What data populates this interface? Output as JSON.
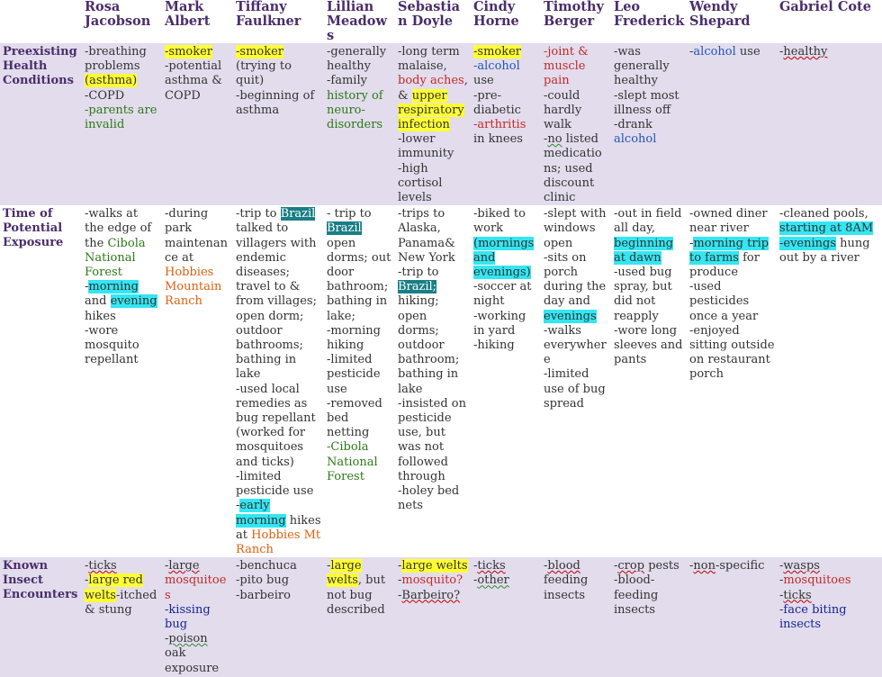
{
  "names": [
    "Rosa Jacobson",
    "Mark Albert",
    "Tiffany Faulkner",
    "Lillian Meadows",
    "Sebastian Doyle",
    "Cindy Horne",
    "Timothy Berger",
    "Leo Frederick",
    "Wendy Shepard",
    "Gabriel Cote"
  ],
  "rows": [
    {
      "label": "Preexisting Health Conditions",
      "cells": [
        [
          [
            [
              "-breathing problems ",
              ""
            ],
            [
              "(asthma)",
              "hy"
            ]
          ],
          [
            [
              "-COPD",
              ""
            ]
          ],
          [
            [
              "-parents are invalid",
              "grn"
            ]
          ]
        ],
        [
          [
            [
              "-smoker",
              "hy"
            ]
          ],
          [
            [
              "-potential asthma & COPD",
              ""
            ]
          ]
        ],
        [
          [
            [
              "-smoker",
              "hy"
            ]
          ],
          [
            [
              "(trying to quit)",
              ""
            ]
          ],
          [
            [
              "-beginning of asthma",
              ""
            ]
          ]
        ],
        [
          [
            [
              "-generally healthy",
              ""
            ]
          ],
          [
            [
              "-family ",
              ""
            ],
            [
              "history of neuro-disorders",
              "grn"
            ]
          ]
        ],
        [
          [
            [
              "-long term malaise, ",
              ""
            ],
            [
              "body aches",
              "red"
            ],
            [
              ", & ",
              ""
            ],
            [
              "upper respiratory infection",
              "hy"
            ]
          ],
          [
            [
              "-lower immunity",
              ""
            ]
          ],
          [
            [
              "-high cortisol levels",
              ""
            ]
          ]
        ],
        [
          [
            [
              "-smoker",
              "hy"
            ]
          ],
          [
            [
              "-alcohol",
              "blu"
            ],
            [
              " use",
              ""
            ]
          ],
          [
            [
              "-pre-diabetic",
              ""
            ]
          ],
          [
            [
              "-arthritis",
              "red"
            ],
            [
              " in knees",
              ""
            ]
          ]
        ],
        [
          [
            [
              "-joint & muscle pain",
              "red"
            ]
          ],
          [
            [
              "-could hardly walk",
              ""
            ]
          ],
          [
            [
              "-",
              ""
            ],
            [
              "no",
              "sqg"
            ],
            [
              " listed medications; used discount clinic",
              ""
            ]
          ]
        ],
        [
          [
            [
              "-was generally healthy",
              ""
            ]
          ],
          [
            [
              "-slept most illness off",
              ""
            ]
          ],
          [
            [
              "-drank ",
              ""
            ],
            [
              "alcohol",
              "blu"
            ]
          ]
        ],
        [
          [
            [
              "-",
              ""
            ],
            [
              "alcohol",
              "blu"
            ],
            [
              " use",
              ""
            ]
          ]
        ],
        [
          [
            [
              "-",
              ""
            ],
            [
              "healthy",
              "sq"
            ]
          ]
        ]
      ]
    },
    {
      "label": "Time of Potential Exposure",
      "cells": [
        [
          [
            [
              "-walks at the edge of the ",
              ""
            ],
            [
              "Cibola National Forest",
              "grn"
            ]
          ],
          [
            [
              "-",
              ""
            ],
            [
              "morning",
              "hc"
            ],
            [
              " and ",
              ""
            ],
            [
              "evening",
              "hc"
            ],
            [
              " hikes",
              ""
            ]
          ],
          [
            [
              "-wore mosquito repellant",
              ""
            ]
          ]
        ],
        [
          [
            [
              "-during park maintenance at ",
              ""
            ],
            [
              "Hobbies Mountain Ranch",
              "org"
            ]
          ]
        ],
        [
          [
            [
              "-trip to ",
              ""
            ],
            [
              "Brazil",
              "ht"
            ],
            [
              " talked to villagers with endemic diseases; travel to & from villages; open dorm; outdoor bathrooms; bathing in lake",
              ""
            ]
          ],
          [
            [
              "-used local remedies as bug repellant (worked for mosquitoes and ticks)",
              ""
            ]
          ],
          [
            [
              "-limited pesticide use",
              ""
            ]
          ],
          [
            [
              "-",
              ""
            ],
            [
              "early morning",
              "hc"
            ],
            [
              " hikes at ",
              ""
            ],
            [
              "Hobbies Mt Ranch",
              "org"
            ]
          ]
        ],
        [
          [
            [
              "- trip to ",
              ""
            ],
            [
              "Brazil",
              "ht"
            ],
            [
              " open dorms; out door bathroom; bathing in lake;",
              ""
            ]
          ],
          [
            [
              "-morning hiking",
              ""
            ]
          ],
          [
            [
              "-limited pesticide use",
              ""
            ]
          ],
          [
            [
              "-removed bed netting",
              ""
            ]
          ],
          [
            [
              "-Cibola National Forest",
              "grn"
            ]
          ]
        ],
        [
          [
            [
              "-trips to Alaska, Panama& New York",
              ""
            ]
          ],
          [
            [
              "-trip to ",
              ""
            ],
            [
              "Brazil;",
              "ht"
            ],
            [
              " hiking; open dorms; outdoor bathroom; bathing in lake",
              ""
            ]
          ],
          [
            [
              "-insisted on pesticide use, but was not followed through",
              ""
            ]
          ],
          [
            [
              "-holey bed nets",
              ""
            ]
          ]
        ],
        [
          [
            [
              "-biked to work ",
              ""
            ],
            [
              "(mornings and evenings)",
              "hc"
            ]
          ],
          [
            [
              "-soccer at night",
              ""
            ]
          ],
          [
            [
              "-working in yard",
              ""
            ]
          ],
          [
            [
              "-hiking",
              ""
            ]
          ]
        ],
        [
          [
            [
              "-slept with windows open",
              ""
            ]
          ],
          [
            [
              "-sits on porch during the day and ",
              ""
            ],
            [
              "evenings",
              "hc"
            ]
          ],
          [
            [
              "-walks everywhere",
              ""
            ]
          ],
          [
            [
              "-limited use of bug spread",
              ""
            ]
          ]
        ],
        [
          [
            [
              "-out in field all day, ",
              ""
            ],
            [
              "beginning at dawn",
              "hc"
            ]
          ],
          [
            [
              "-used bug spray, but did not reapply",
              ""
            ]
          ],
          [
            [
              "-wore long sleeves and pants",
              ""
            ]
          ]
        ],
        [
          [
            [
              "-owned diner near river",
              ""
            ]
          ],
          [
            [
              "-",
              ""
            ],
            [
              "morning trip to farms",
              "hc"
            ],
            [
              " for produce",
              ""
            ]
          ],
          [
            [
              "-used pesticides once a year",
              ""
            ]
          ],
          [
            [
              "-enjoyed sitting outside on restaurant porch",
              ""
            ]
          ]
        ],
        [
          [
            [
              "-cleaned pools, ",
              ""
            ],
            [
              "starting at 8AM",
              "hc"
            ]
          ],
          [
            [
              "-evenings",
              "hc"
            ],
            [
              " hung out by a river",
              ""
            ]
          ]
        ]
      ]
    },
    {
      "label": "Known Insect Encounters",
      "cells": [
        [
          [
            [
              "-",
              ""
            ],
            [
              "ticks",
              "sq"
            ]
          ],
          [
            [
              "-",
              ""
            ],
            [
              "large red welts",
              "hy"
            ],
            [
              "-itched & stung",
              ""
            ]
          ]
        ],
        [
          [
            [
              "-",
              ""
            ],
            [
              "large",
              "sq"
            ]
          ],
          [
            [
              "mosquitoes",
              "red"
            ]
          ],
          [
            [
              "-",
              ""
            ],
            [
              "kissing bug",
              "nvy"
            ]
          ],
          [
            [
              "-",
              ""
            ],
            [
              "poison",
              "sqg"
            ],
            [
              " oak exposure",
              ""
            ]
          ]
        ],
        [
          [
            [
              "-benchuca",
              ""
            ]
          ],
          [
            [
              "-pito bug",
              ""
            ]
          ],
          [
            [
              "-barbeiro",
              ""
            ]
          ]
        ],
        [
          [
            [
              "-",
              ""
            ],
            [
              "large welts",
              "hy"
            ],
            [
              ", but not bug described",
              ""
            ]
          ]
        ],
        [
          [
            [
              "-",
              ""
            ],
            [
              "large welts",
              "hy"
            ]
          ],
          [
            [
              "-",
              ""
            ],
            [
              "mosquito?",
              "red"
            ]
          ],
          [
            [
              "-",
              ""
            ],
            [
              "Barbeiro?",
              "sq"
            ]
          ]
        ],
        [
          [
            [
              "-",
              ""
            ],
            [
              "ticks",
              "sq"
            ]
          ],
          [
            [
              "-",
              ""
            ],
            [
              "other",
              "sqg"
            ]
          ]
        ],
        [
          [
            [
              "-",
              ""
            ],
            [
              "blood",
              "sq"
            ],
            [
              " feeding insects",
              ""
            ]
          ]
        ],
        [
          [
            [
              "-",
              ""
            ],
            [
              "crop",
              "sq"
            ],
            [
              " pests",
              ""
            ]
          ],
          [
            [
              "-blood-feeding insects",
              ""
            ]
          ]
        ],
        [
          [
            [
              "-",
              ""
            ],
            [
              "non",
              "sq"
            ],
            [
              "-specific",
              ""
            ]
          ]
        ],
        [
          [
            [
              "-",
              ""
            ],
            [
              "wasps",
              "sq"
            ]
          ],
          [
            [
              "-",
              ""
            ],
            [
              "mosquitoes",
              "red"
            ]
          ],
          [
            [
              "-",
              ""
            ],
            [
              "ticks",
              "sq"
            ]
          ],
          [
            [
              "-",
              ""
            ],
            [
              "face biting insects",
              "nvy"
            ]
          ]
        ]
      ]
    }
  ]
}
